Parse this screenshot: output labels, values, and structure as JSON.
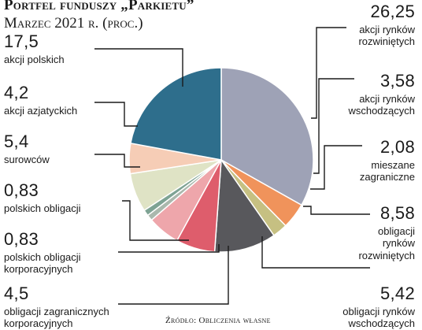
{
  "title": "Portfel funduszy „Parkietu”",
  "subtitle": "Marzec 2021 r. (proc.)",
  "source": "Źródło: Obliczenia własne",
  "chart_data": {
    "type": "pie",
    "title": "Portfel funduszy „Parkietu”",
    "subtitle": "Marzec 2021 r. (proc.)",
    "slices": [
      {
        "label": "akcji rynków rozwiniętych",
        "value": 26.25,
        "value_text": "26,25",
        "color": "#9ea2b6"
      },
      {
        "label": "akcji rynków wschodzących",
        "value": 3.58,
        "value_text": "3,58",
        "color": "#f0935b"
      },
      {
        "label": "mieszane zagraniczne",
        "value": 2.08,
        "value_text": "2,08",
        "color": "#c6c082"
      },
      {
        "label": "obligacji rynków rozwiniętych",
        "value": 8.58,
        "value_text": "8,58",
        "color": "#58585c"
      },
      {
        "label": "obligacji rynków wschodzących",
        "value": 5.42,
        "value_text": "5,42",
        "color": "#de5d6c"
      },
      {
        "label": "obligacji zagranicznych korporacyjnych",
        "value": 4.5,
        "value_text": "4,5",
        "color": "#eea6ab"
      },
      {
        "label": "polskich obligacji korporacyjnych",
        "value": 0.83,
        "value_text": "0,83",
        "color": "#aab8ad"
      },
      {
        "label": "polskich obligacji",
        "value": 0.83,
        "value_text": "0,83",
        "color": "#7ea394"
      },
      {
        "label": "surowców",
        "value": 5.4,
        "value_text": "5,4",
        "color": "#dfe3c5"
      },
      {
        "label": "akcji azjatyckich",
        "value": 4.2,
        "value_text": "4,2",
        "color": "#f6cdb6"
      },
      {
        "label": "akcji polskich",
        "value": 17.5,
        "value_text": "17,5",
        "color": "#2e6e8c"
      }
    ]
  },
  "labels": [
    {
      "value": "17,5",
      "desc": [
        "akcji polskich"
      ]
    },
    {
      "value": "4,2",
      "desc": [
        "akcji azjatyckich"
      ]
    },
    {
      "value": "5,4",
      "desc": [
        "surowców"
      ]
    },
    {
      "value": "0,83",
      "desc": [
        "polskich obligacji"
      ]
    },
    {
      "value": "0,83",
      "desc": [
        "polskich obligacji",
        "korporacyjnych"
      ]
    },
    {
      "value": "4,5",
      "desc": [
        "obligacji zagranicznych",
        "korporacyjnych"
      ]
    },
    {
      "value": "26,25",
      "desc": [
        "akcji rynków",
        "rozwiniętych"
      ]
    },
    {
      "value": "3,58",
      "desc": [
        "akcji rynków",
        "wschodzących"
      ]
    },
    {
      "value": "2,08",
      "desc": [
        "mieszane",
        "zagraniczne"
      ]
    },
    {
      "value": "8,58",
      "desc": [
        "obligacji",
        "rynków",
        "rozwiniętych"
      ]
    },
    {
      "value": "5,42",
      "desc": [
        "obligacji rynków",
        "wschodzących"
      ]
    }
  ]
}
